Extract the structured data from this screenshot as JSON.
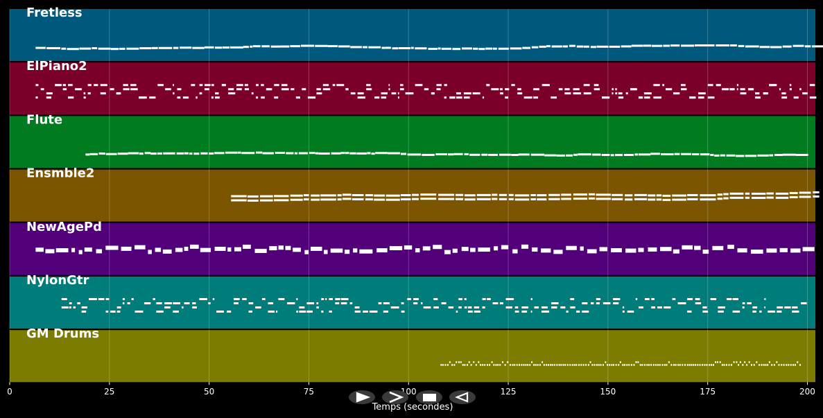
{
  "chart_data": {
    "type": "piano-roll",
    "xlabel": "Temps (secondes)",
    "xlim": [
      0,
      202
    ],
    "xticks": [
      0,
      25,
      50,
      75,
      100,
      125,
      150,
      175,
      200
    ],
    "grid": true,
    "tracks": [
      {
        "name": "Fretless",
        "color": "#00587d",
        "start": 6.5,
        "end": 202,
        "density": "sparse"
      },
      {
        "name": "ElPiano2",
        "color": "#7a0029",
        "start": 6.5,
        "end": 202,
        "density": "dense"
      },
      {
        "name": "Flute",
        "color": "#007b20",
        "start": 19,
        "end": 198,
        "density": "sparse"
      },
      {
        "name": "Ensmble2",
        "color": "#7b5500",
        "start": 55.5,
        "end": 202,
        "density": "double"
      },
      {
        "name": "NewAgePd",
        "color": "#52007a",
        "start": 6.5,
        "end": 202,
        "density": "blocky"
      },
      {
        "name": "NylonGtr",
        "color": "#007c7a",
        "start": 13,
        "end": 199,
        "density": "dense"
      },
      {
        "name": "GM Drums",
        "color": "#7b7c00",
        "start": 108,
        "end": 198,
        "density": "drums"
      }
    ]
  },
  "controls": [
    {
      "name": "play-forward-button",
      "icon": "play-outline-icon"
    },
    {
      "name": "fast-forward-button",
      "icon": "chevron-right-icon"
    },
    {
      "name": "stop-button",
      "icon": "stop-icon"
    },
    {
      "name": "rewind-button",
      "icon": "play-back-outline-icon"
    }
  ]
}
